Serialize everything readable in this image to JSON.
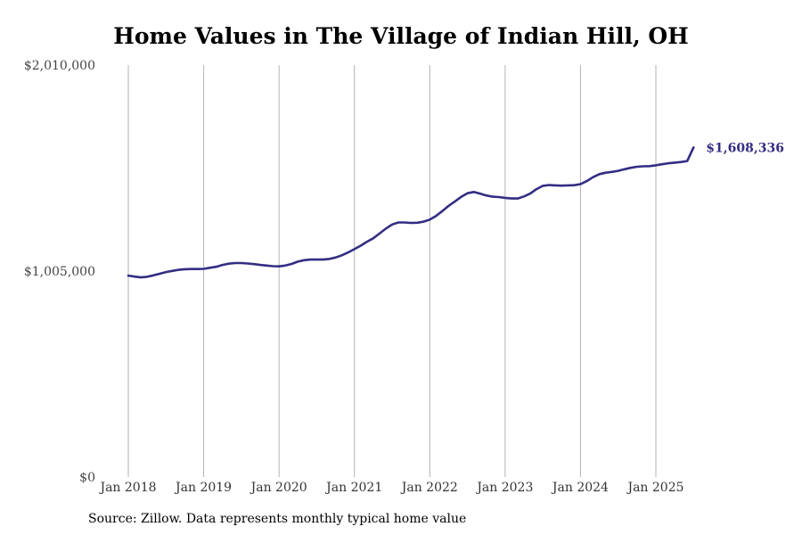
{
  "title": "Home Values in The Village of Indian Hill, OH",
  "source": "Source: Zillow. Data represents monthly typical home value",
  "colors": {
    "line": "#332d83",
    "grid": "#b3b3b3"
  },
  "chart_data": {
    "type": "line",
    "title": "Home Values in The Village of Indian Hill, OH",
    "xlabel": "",
    "ylabel": "",
    "ylim": [
      0,
      2010000
    ],
    "yticks": [
      0,
      1005000,
      2010000
    ],
    "ytick_labels": [
      "$0",
      "$1,005,000",
      "$2,010,000"
    ],
    "xticks": [
      "2018-01",
      "2019-01",
      "2020-01",
      "2021-01",
      "2022-01",
      "2023-01",
      "2024-01",
      "2025-01"
    ],
    "xtick_labels": [
      "Jan 2018",
      "Jan 2019",
      "Jan 2020",
      "Jan 2021",
      "Jan 2022",
      "Jan 2023",
      "Jan 2024",
      "Jan 2025"
    ],
    "grid": "vertical",
    "end_label": "$1,608,336",
    "series": [
      {
        "x": [
          "2018-01",
          "2018-02",
          "2018-03",
          "2018-04",
          "2018-05",
          "2018-06",
          "2018-07",
          "2018-08",
          "2018-09",
          "2018-10",
          "2018-11",
          "2018-12",
          "2019-01",
          "2019-02",
          "2019-03",
          "2019-04",
          "2019-05",
          "2019-06",
          "2019-07",
          "2019-08",
          "2019-09",
          "2019-10",
          "2019-11",
          "2019-12",
          "2020-01",
          "2020-02",
          "2020-03",
          "2020-04",
          "2020-05",
          "2020-06",
          "2020-07",
          "2020-08",
          "2020-09",
          "2020-10",
          "2020-11",
          "2020-12",
          "2021-01",
          "2021-02",
          "2021-03",
          "2021-04",
          "2021-05",
          "2021-06",
          "2021-07",
          "2021-08",
          "2021-09",
          "2021-10",
          "2021-11",
          "2021-12",
          "2022-01",
          "2022-02",
          "2022-03",
          "2022-04",
          "2022-05",
          "2022-06",
          "2022-07",
          "2022-08",
          "2022-09",
          "2022-10",
          "2022-11",
          "2022-12",
          "2023-01",
          "2023-02",
          "2023-03",
          "2023-04",
          "2023-05",
          "2023-06",
          "2023-07",
          "2023-08",
          "2023-09",
          "2023-10",
          "2023-11",
          "2023-12",
          "2024-01",
          "2024-02",
          "2024-03",
          "2024-04",
          "2024-05",
          "2024-06",
          "2024-07",
          "2024-08",
          "2024-09",
          "2024-10",
          "2024-11",
          "2024-12",
          "2025-01",
          "2025-02",
          "2025-03",
          "2025-04",
          "2025-05",
          "2025-06",
          "2025-07"
        ],
        "values": [
          983000,
          978000,
          974000,
          977000,
          984000,
          992000,
          1000000,
          1006000,
          1011000,
          1014000,
          1015000,
          1015000,
          1016000,
          1021000,
          1026000,
          1035000,
          1041000,
          1044000,
          1044000,
          1042000,
          1039000,
          1035000,
          1032000,
          1029000,
          1028000,
          1032000,
          1040000,
          1051000,
          1058000,
          1061000,
          1061000,
          1061000,
          1064000,
          1071000,
          1082000,
          1096000,
          1112000,
          1129000,
          1148000,
          1165000,
          1188000,
          1212000,
          1232000,
          1242000,
          1242000,
          1240000,
          1241000,
          1246000,
          1256000,
          1274000,
          1298000,
          1323000,
          1345000,
          1367000,
          1385000,
          1391000,
          1383000,
          1374000,
          1368000,
          1366000,
          1362000,
          1359000,
          1359000,
          1369000,
          1383000,
          1405000,
          1421000,
          1425000,
          1423000,
          1422000,
          1423000,
          1424000,
          1429000,
          1444000,
          1463000,
          1478000,
          1485000,
          1489000,
          1494000,
          1502000,
          1509000,
          1514000,
          1516000,
          1517000,
          1521000,
          1526000,
          1531000,
          1534000,
          1537000,
          1542000,
          1608336
        ]
      }
    ]
  }
}
